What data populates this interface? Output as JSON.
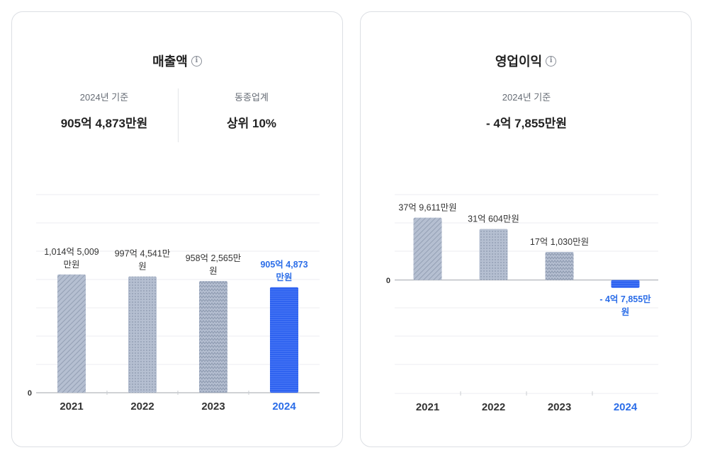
{
  "revenue": {
    "title": "매출액",
    "info_glyph": "i",
    "stats": [
      {
        "label": "2024년 기준",
        "value": "905억 4,873만원"
      },
      {
        "label": "동종업계",
        "value": "상위 10%"
      }
    ],
    "chart_data": {
      "type": "bar",
      "categories": [
        "2021",
        "2022",
        "2023",
        "2024"
      ],
      "values": [
        101450.09,
        99745.41,
        95825.65,
        90548.73
      ],
      "value_unit": "백만원",
      "data_labels": [
        [
          "1,014억 5,009",
          "만원"
        ],
        [
          "997억 4,541만",
          "원"
        ],
        [
          "958억 2,565만",
          "원"
        ],
        [
          "905억 4,873",
          "만원"
        ]
      ],
      "zero_label": "0",
      "ylim": [
        0,
        170000
      ],
      "highlight_index": 3,
      "grid": true
    }
  },
  "profit": {
    "title": "영업이익",
    "info_glyph": "i",
    "stats": [
      {
        "label": "2024년 기준",
        "value": "- 4억 7,855만원"
      }
    ],
    "chart_data": {
      "type": "bar",
      "categories": [
        "2021",
        "2022",
        "2023",
        "2024"
      ],
      "values": [
        3796.11,
        3106.04,
        1710.3,
        -478.55
      ],
      "value_unit": "백만원",
      "data_labels": [
        [
          "37억 9,611만원"
        ],
        [
          "31억 604만원"
        ],
        [
          "17억 1,030만원"
        ],
        [
          "- 4억 7,855만",
          "원"
        ]
      ],
      "zero_label": "0",
      "ylim": [
        -6900,
        5200
      ],
      "highlight_index": 3,
      "grid": true
    }
  },
  "colors": {
    "bar_fill": "#b5bfd1",
    "bar_pattern": "#8b97ad",
    "highlight": "#2f63f0",
    "highlight_text": "#2b6de8"
  },
  "patterns": [
    "diagonal-hatch",
    "dots",
    "zigzag",
    "horizontal-lines"
  ]
}
